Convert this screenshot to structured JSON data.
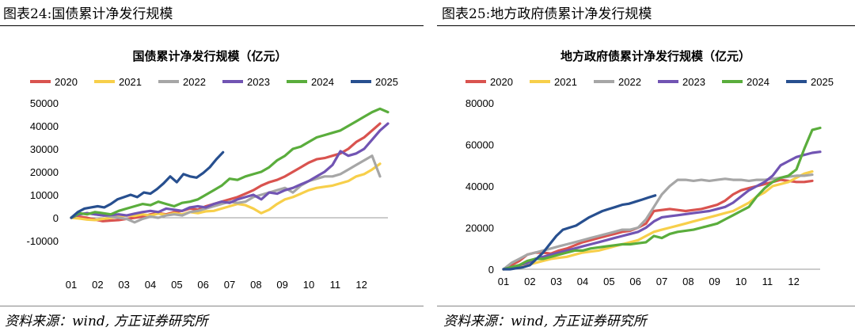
{
  "colors": {
    "2020": "#d9534f",
    "2021": "#f7cf4a",
    "2022": "#a6a6a6",
    "2023": "#7154b3",
    "2024": "#5aad3c",
    "2025": "#274f8f"
  },
  "panels": [
    {
      "fig_title": "图表24:国债累计净发行规模",
      "source": "资料来源：wind, 方正证券研究所"
    },
    {
      "fig_title": "图表25:地方政府债累计净发行规模",
      "source": "资料来源：wind, 方正证券研究所"
    }
  ],
  "chart_data": [
    {
      "type": "line",
      "title": "国债累计净发行规模（亿元）",
      "categories": [
        "01",
        "02",
        "03",
        "04",
        "05",
        "06",
        "07",
        "08",
        "09",
        "10",
        "11",
        "12"
      ],
      "ylim": [
        -10000,
        50000
      ],
      "yticks": [
        -10000,
        0,
        10000,
        20000,
        30000,
        40000,
        50000
      ],
      "legend_position": "top",
      "grid": false,
      "series": [
        {
          "name": "2020",
          "x": [
            0,
            0.3,
            0.6,
            0.9,
            1.2,
            1.5,
            1.8,
            2.1,
            2.4,
            2.7,
            3.0,
            3.3,
            3.6,
            3.9,
            4.2,
            4.5,
            4.8,
            5.1,
            5.4,
            5.7,
            6.0,
            6.3,
            6.6,
            6.9,
            7.2,
            7.5,
            7.8,
            8.1,
            8.4,
            8.7,
            9.0,
            9.3,
            9.6,
            9.9,
            10.2,
            10.5,
            10.8,
            11.1,
            11.4,
            11.7
          ],
          "values": [
            0,
            500,
            0,
            -800,
            -1500,
            -1200,
            -1000,
            -500,
            0,
            500,
            1500,
            2000,
            1500,
            2500,
            3000,
            4000,
            3500,
            5000,
            6000,
            7000,
            8000,
            9000,
            10500,
            12000,
            14000,
            15500,
            16500,
            18000,
            20000,
            22000,
            24000,
            25500,
            26000,
            27000,
            28000,
            30000,
            33000,
            35000,
            38000,
            41000
          ]
        },
        {
          "name": "2021",
          "x": [
            0,
            0.3,
            0.6,
            0.9,
            1.2,
            1.5,
            1.8,
            2.1,
            2.4,
            2.7,
            3.0,
            3.3,
            3.6,
            3.9,
            4.2,
            4.5,
            4.8,
            5.1,
            5.4,
            5.7,
            6.0,
            6.3,
            6.6,
            6.9,
            7.2,
            7.5,
            7.8,
            8.1,
            8.4,
            8.7,
            9.0,
            9.3,
            9.6,
            9.9,
            10.2,
            10.5,
            10.8,
            11.1,
            11.4,
            11.7
          ],
          "values": [
            0,
            -300,
            -800,
            -1000,
            -500,
            0,
            500,
            1000,
            800,
            1500,
            1000,
            1800,
            1200,
            2000,
            1500,
            2500,
            2000,
            2800,
            3000,
            4000,
            5000,
            6000,
            5500,
            4000,
            2000,
            3500,
            6000,
            8000,
            9000,
            10500,
            12000,
            13000,
            13500,
            14000,
            15000,
            16000,
            18000,
            19000,
            21000,
            23500
          ]
        },
        {
          "name": "2022",
          "x": [
            0,
            0.3,
            0.6,
            0.9,
            1.2,
            1.5,
            1.8,
            2.1,
            2.4,
            2.7,
            3.0,
            3.3,
            3.6,
            3.9,
            4.2,
            4.5,
            4.8,
            5.1,
            5.4,
            5.7,
            6.0,
            6.3,
            6.6,
            6.9,
            7.2,
            7.5,
            7.8,
            8.1,
            8.4,
            8.7,
            9.0,
            9.3,
            9.6,
            9.9,
            10.2,
            10.5,
            10.8,
            11.1,
            11.4,
            11.7
          ],
          "values": [
            0,
            1500,
            2000,
            1500,
            1000,
            500,
            0,
            -500,
            -2000,
            -500,
            500,
            0,
            1000,
            1500,
            1000,
            2500,
            3000,
            4000,
            5000,
            6000,
            7000,
            6500,
            7000,
            9000,
            10000,
            11000,
            12000,
            13000,
            11000,
            14000,
            16000,
            17000,
            18000,
            18000,
            19000,
            21000,
            23000,
            25000,
            27000,
            18000
          ]
        },
        {
          "name": "2023",
          "x": [
            0,
            0.3,
            0.6,
            0.9,
            1.2,
            1.5,
            1.8,
            2.1,
            2.4,
            2.7,
            3.0,
            3.3,
            3.6,
            3.9,
            4.2,
            4.5,
            4.8,
            5.1,
            5.4,
            5.7,
            6.0,
            6.3,
            6.6,
            6.9,
            7.2,
            7.5,
            7.8,
            8.1,
            8.4,
            8.7,
            9.0,
            9.3,
            9.6,
            9.9,
            10.2,
            10.5,
            10.8,
            11.1,
            11.4,
            11.7,
            12.0
          ],
          "values": [
            0,
            1500,
            2000,
            1500,
            1000,
            1200,
            1500,
            1000,
            1800,
            2500,
            3000,
            2500,
            4000,
            3500,
            3000,
            4500,
            5000,
            4500,
            6000,
            7000,
            6500,
            8000,
            9000,
            10000,
            8000,
            11000,
            10500,
            12000,
            13000,
            14500,
            16000,
            18000,
            20000,
            23000,
            29000,
            27000,
            28000,
            30000,
            34000,
            38000,
            41000
          ]
        },
        {
          "name": "2024",
          "x": [
            0,
            0.3,
            0.6,
            0.9,
            1.2,
            1.5,
            1.8,
            2.1,
            2.4,
            2.7,
            3.0,
            3.3,
            3.6,
            3.9,
            4.2,
            4.5,
            4.8,
            5.1,
            5.4,
            5.7,
            6.0,
            6.3,
            6.6,
            6.9,
            7.2,
            7.5,
            7.8,
            8.1,
            8.4,
            8.7,
            9.0,
            9.3,
            9.6,
            9.9,
            10.2,
            10.5,
            10.8,
            11.1,
            11.4,
            11.7,
            12.0
          ],
          "values": [
            0,
            2000,
            1500,
            2500,
            2000,
            1500,
            3000,
            4000,
            5000,
            6000,
            5500,
            7000,
            6000,
            5000,
            6500,
            7000,
            8000,
            10000,
            12000,
            14000,
            17000,
            16500,
            18000,
            19000,
            20000,
            22000,
            25000,
            27000,
            30000,
            31000,
            33000,
            35000,
            36000,
            37000,
            38000,
            40000,
            42000,
            44000,
            46000,
            47500,
            46000
          ]
        },
        {
          "name": "2025",
          "x": [
            0,
            0.25,
            0.5,
            0.75,
            1.0,
            1.25,
            1.5,
            1.75,
            2.0,
            2.25,
            2.5,
            2.75,
            3.0,
            3.25,
            3.5,
            3.75,
            4.0,
            4.25,
            4.5,
            4.75,
            5.0,
            5.25,
            5.5,
            5.75
          ],
          "values": [
            0,
            2500,
            4000,
            4500,
            5000,
            4500,
            6000,
            8000,
            9000,
            10000,
            9000,
            11000,
            10500,
            12500,
            15000,
            18000,
            15500,
            19000,
            18000,
            17500,
            19500,
            22000,
            25500,
            28500
          ]
        }
      ]
    },
    {
      "type": "line",
      "title": "地方政府债累计净发行规模（亿元）",
      "categories": [
        "01",
        "02",
        "03",
        "04",
        "05",
        "06",
        "07",
        "08",
        "09",
        "10",
        "11",
        "12"
      ],
      "ylim": [
        0,
        80000
      ],
      "yticks": [
        0,
        20000,
        40000,
        60000,
        80000
      ],
      "legend_position": "top",
      "grid": false,
      "series": [
        {
          "name": "2020",
          "x": [
            0,
            0.3,
            0.6,
            0.9,
            1.2,
            1.5,
            1.8,
            2.1,
            2.4,
            2.7,
            3.0,
            3.3,
            3.6,
            3.9,
            4.2,
            4.5,
            4.8,
            5.1,
            5.4,
            5.7,
            6.0,
            6.3,
            6.6,
            6.9,
            7.2,
            7.5,
            7.8,
            8.1,
            8.4,
            8.7,
            9.0,
            9.3,
            9.6,
            9.9,
            10.2,
            10.5,
            10.8,
            11.1,
            11.4,
            11.7
          ],
          "values": [
            0,
            2000,
            4000,
            7000,
            8000,
            8000,
            7500,
            9000,
            10000,
            11500,
            13000,
            14000,
            15000,
            16000,
            17000,
            18000,
            18500,
            20000,
            22000,
            28000,
            28500,
            29000,
            28500,
            28000,
            28500,
            29000,
            30000,
            31000,
            33000,
            36000,
            38000,
            39000,
            40000,
            41000,
            42000,
            43000,
            42500,
            42000,
            42000,
            42500
          ]
        },
        {
          "name": "2021",
          "x": [
            0,
            0.3,
            0.6,
            0.9,
            1.2,
            1.5,
            1.8,
            2.1,
            2.4,
            2.7,
            3.0,
            3.3,
            3.6,
            3.9,
            4.2,
            4.5,
            4.8,
            5.1,
            5.4,
            5.7,
            6.0,
            6.3,
            6.6,
            6.9,
            7.2,
            7.5,
            7.8,
            8.1,
            8.4,
            8.7,
            9.0,
            9.3,
            9.6,
            9.9,
            10.2,
            10.5,
            10.8,
            11.1,
            11.4,
            11.7
          ],
          "values": [
            0,
            500,
            1000,
            2000,
            3000,
            4000,
            5000,
            5500,
            6000,
            7000,
            8000,
            8500,
            9000,
            10000,
            11000,
            12000,
            13000,
            14000,
            16000,
            18000,
            19000,
            20000,
            21000,
            22000,
            23000,
            24000,
            25000,
            26000,
            27000,
            28000,
            30000,
            32000,
            35000,
            37000,
            40000,
            41000,
            42000,
            44000,
            46000,
            47000
          ]
        },
        {
          "name": "2022",
          "x": [
            0,
            0.3,
            0.6,
            0.9,
            1.2,
            1.5,
            1.8,
            2.1,
            2.4,
            2.7,
            3.0,
            3.3,
            3.6,
            3.9,
            4.2,
            4.5,
            4.8,
            5.1,
            5.4,
            5.7,
            6.0,
            6.3,
            6.6,
            6.9,
            7.2,
            7.5,
            7.8,
            8.1,
            8.4,
            8.7,
            9.0,
            9.3,
            9.6,
            9.9,
            10.2,
            10.5,
            10.8,
            11.1,
            11.4,
            11.7
          ],
          "values": [
            0,
            3000,
            5000,
            7000,
            8000,
            9000,
            10000,
            11000,
            12000,
            13000,
            14000,
            15000,
            16000,
            17000,
            18000,
            19000,
            19000,
            20000,
            24000,
            30000,
            36000,
            40000,
            43000,
            43000,
            42500,
            43000,
            42500,
            43000,
            43500,
            43000,
            43000,
            42500,
            43000,
            43000,
            43500,
            44000,
            44500,
            45000,
            45000,
            45500
          ]
        },
        {
          "name": "2023",
          "x": [
            0,
            0.3,
            0.6,
            0.9,
            1.2,
            1.5,
            1.8,
            2.1,
            2.4,
            2.7,
            3.0,
            3.3,
            3.6,
            3.9,
            4.2,
            4.5,
            4.8,
            5.1,
            5.4,
            5.7,
            6.0,
            6.3,
            6.6,
            6.9,
            7.2,
            7.5,
            7.8,
            8.1,
            8.4,
            8.7,
            9.0,
            9.3,
            9.6,
            9.9,
            10.2,
            10.5,
            10.8,
            11.1,
            11.4,
            11.7,
            12.0
          ],
          "values": [
            0,
            1000,
            2000,
            3000,
            5000,
            6000,
            7000,
            8000,
            9000,
            10000,
            11000,
            12000,
            13000,
            14000,
            15000,
            16000,
            17000,
            18000,
            20000,
            23000,
            25000,
            25500,
            26000,
            26500,
            27000,
            27500,
            28000,
            29000,
            30000,
            32000,
            35000,
            38000,
            40000,
            42000,
            45000,
            50000,
            52000,
            54000,
            55000,
            56000,
            56500
          ]
        },
        {
          "name": "2024",
          "x": [
            0,
            0.3,
            0.6,
            0.9,
            1.2,
            1.5,
            1.8,
            2.1,
            2.4,
            2.7,
            3.0,
            3.3,
            3.6,
            3.9,
            4.2,
            4.5,
            4.8,
            5.1,
            5.4,
            5.7,
            6.0,
            6.3,
            6.6,
            6.9,
            7.2,
            7.5,
            7.8,
            8.1,
            8.4,
            8.7,
            9.0,
            9.3,
            9.6,
            9.9,
            10.2,
            10.5,
            10.8,
            11.1,
            11.4,
            11.7,
            12.0
          ],
          "values": [
            0,
            1000,
            2000,
            4000,
            5000,
            5000,
            6000,
            7000,
            8000,
            9000,
            9000,
            10000,
            10500,
            11000,
            11500,
            12000,
            12000,
            12500,
            13000,
            16000,
            15000,
            17000,
            18000,
            18500,
            19000,
            20000,
            21000,
            22000,
            24000,
            26000,
            28000,
            30000,
            35000,
            39000,
            42000,
            44000,
            45000,
            48000,
            58000,
            67000,
            68000
          ]
        },
        {
          "name": "2025",
          "x": [
            0,
            0.25,
            0.5,
            0.75,
            1.0,
            1.25,
            1.5,
            1.75,
            2.0,
            2.25,
            2.5,
            2.75,
            3.0,
            3.25,
            3.5,
            3.75,
            4.0,
            4.25,
            4.5,
            4.75,
            5.0,
            5.25,
            5.5,
            5.75
          ],
          "values": [
            0,
            0,
            500,
            1000,
            2000,
            5000,
            8000,
            12000,
            16000,
            19000,
            20000,
            21000,
            23000,
            25000,
            26500,
            28000,
            29000,
            30000,
            31000,
            31500,
            32500,
            33500,
            34500,
            35500
          ]
        }
      ]
    }
  ]
}
